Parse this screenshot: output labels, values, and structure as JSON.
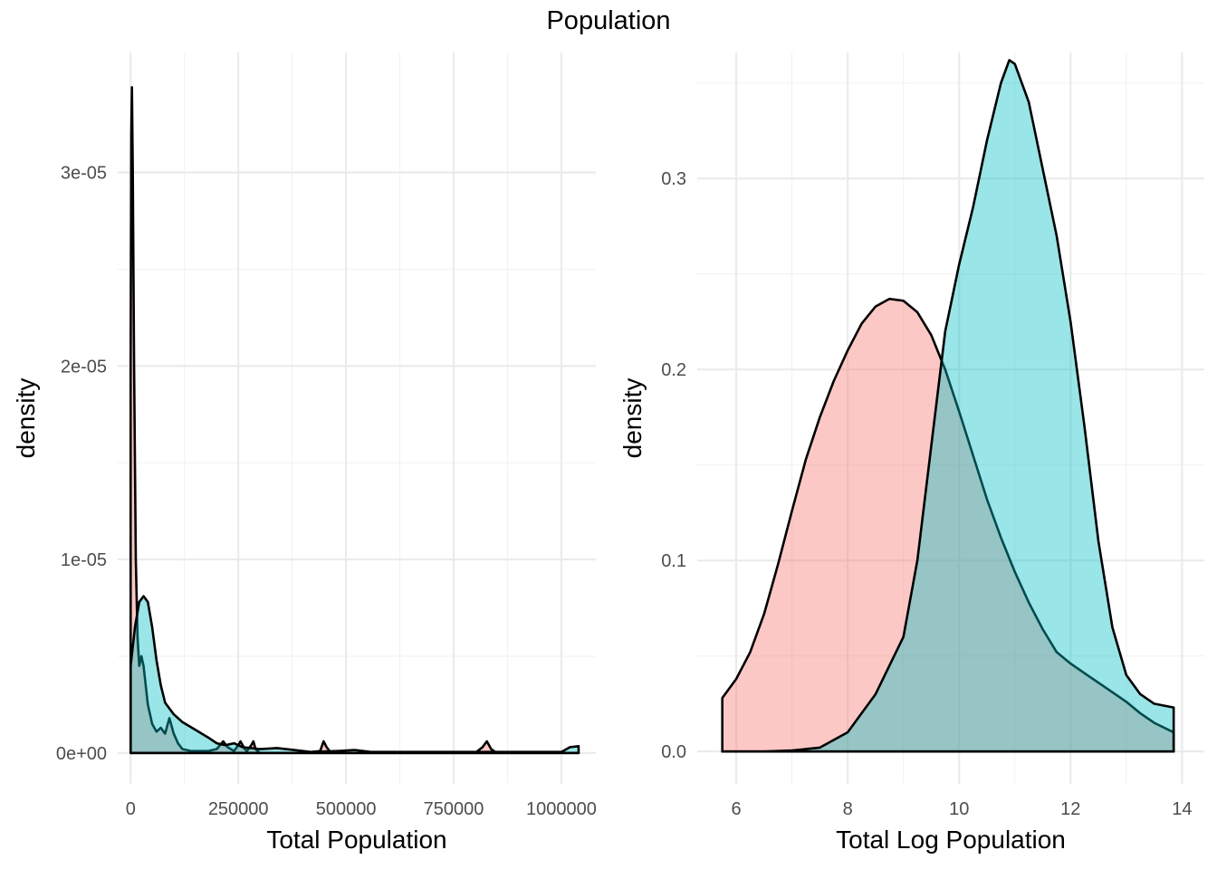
{
  "title": "Population",
  "colors": {
    "group1": "#F8766D",
    "group2": "#00BFC4",
    "outline": "#000000"
  },
  "fill_opacity": 0.4,
  "chart_data": [
    {
      "type": "area",
      "subtype": "density",
      "xlabel": "Total Population",
      "ylabel": "density",
      "xlim": [
        -30000,
        1080000
      ],
      "ylim": [
        -1.6e-06,
        3.62e-05
      ],
      "x_ticks": [
        0,
        250000,
        500000,
        750000,
        1000000
      ],
      "x_tick_labels": [
        "0",
        "250000",
        "500000",
        "750000",
        "1000000"
      ],
      "x_minor_ticks": [
        125000,
        375000,
        625000,
        875000
      ],
      "y_ticks": [
        0,
        1e-05,
        2e-05,
        3e-05
      ],
      "y_tick_labels": [
        "0e+00",
        "1e-05",
        "2e-05",
        "3e-05"
      ],
      "y_minor_ticks": [
        5e-06,
        1.5e-05,
        2.5e-05
      ],
      "grid": true,
      "series": [
        {
          "color": "#F8766D",
          "x": [
            0,
            1500,
            3000,
            5000,
            8000,
            12000,
            16000,
            20000,
            25000,
            30000,
            35000,
            40000,
            45000,
            50000,
            60000,
            70000,
            80000,
            90000,
            100000,
            110000,
            120000,
            140000,
            180000,
            200000,
            215000,
            225000,
            240000,
            250000,
            255000,
            265000,
            270000,
            280000,
            285000,
            290000,
            300000,
            400000,
            440000,
            448000,
            455000,
            465000,
            480000,
            800000,
            817000,
            827000,
            837000,
            850000,
            1040000
          ],
          "y": [
            2e-05,
            3.2e-05,
            3.44e-05,
            3e-05,
            2e-05,
            1e-05,
            6e-06,
            4.5e-06,
            5e-06,
            4.5e-06,
            3.5e-06,
            2.5e-06,
            2e-06,
            1.5e-06,
            1.1e-06,
            1.3e-06,
            1e-06,
            1.8e-06,
            1e-06,
            5e-07,
            2e-07,
            1e-07,
            1e-07,
            2e-07,
            6e-07,
            3e-07,
            1e-07,
            4e-07,
            6e-07,
            2e-07,
            1e-07,
            4e-07,
            6e-07,
            2e-07,
            0,
            0,
            1e-07,
            6e-07,
            3e-07,
            0,
            0,
            0,
            3e-07,
            6e-07,
            2e-07,
            0,
            0
          ]
        },
        {
          "color": "#00BFC4",
          "x": [
            0,
            10000,
            20000,
            30000,
            40000,
            50000,
            60000,
            70000,
            80000,
            100000,
            120000,
            150000,
            180000,
            200000,
            220000,
            240000,
            260000,
            300000,
            340000,
            380000,
            420000,
            480000,
            520000,
            560000,
            1000000,
            1020000,
            1040000
          ],
          "y": [
            4.5e-06,
            6.5e-06,
            7.8e-06,
            8.1e-06,
            7.8e-06,
            6.5e-06,
            4.8e-06,
            3.5e-06,
            2.6e-06,
            2e-06,
            1.6e-06,
            1.2e-06,
            8e-07,
            5e-07,
            4e-07,
            5e-07,
            3e-07,
            2e-07,
            2.5e-07,
            1.5e-07,
            5e-08,
            1e-07,
            1.5e-07,
            5e-08,
            5e-08,
            3e-07,
            3.5e-07
          ]
        }
      ]
    },
    {
      "type": "area",
      "subtype": "density",
      "xlabel": "Total Log Population",
      "ylabel": "density",
      "xlim": [
        5.3,
        14.4
      ],
      "ylim": [
        -0.017,
        0.366
      ],
      "x_ticks": [
        6,
        8,
        10,
        12,
        14
      ],
      "x_tick_labels": [
        "6",
        "8",
        "10",
        "12",
        "14"
      ],
      "x_minor_ticks": [
        7,
        9,
        11,
        13
      ],
      "y_ticks": [
        0.0,
        0.1,
        0.2,
        0.3
      ],
      "y_tick_labels": [
        "0.0",
        "0.1",
        "0.2",
        "0.3"
      ],
      "y_minor_ticks": [
        0.05,
        0.15,
        0.25,
        0.35
      ],
      "grid": true,
      "series": [
        {
          "color": "#F8766D",
          "x": [
            5.75,
            6.0,
            6.25,
            6.5,
            6.75,
            7.0,
            7.25,
            7.5,
            7.75,
            8.0,
            8.25,
            8.5,
            8.75,
            9.0,
            9.25,
            9.5,
            9.75,
            10.0,
            10.25,
            10.5,
            10.75,
            11.0,
            11.25,
            11.5,
            11.75,
            12.0,
            12.25,
            12.5,
            12.75,
            13.0,
            13.25,
            13.5,
            13.85
          ],
          "y": [
            0.028,
            0.038,
            0.052,
            0.072,
            0.098,
            0.126,
            0.153,
            0.175,
            0.194,
            0.21,
            0.224,
            0.233,
            0.237,
            0.236,
            0.23,
            0.218,
            0.2,
            0.178,
            0.155,
            0.132,
            0.112,
            0.094,
            0.078,
            0.064,
            0.052,
            0.046,
            0.041,
            0.036,
            0.031,
            0.026,
            0.02,
            0.015,
            0.01
          ]
        },
        {
          "color": "#00BFC4",
          "x": [
            5.75,
            6.5,
            7.0,
            7.5,
            8.0,
            8.5,
            9.0,
            9.25,
            9.5,
            9.75,
            10.0,
            10.25,
            10.5,
            10.75,
            10.9,
            11.0,
            11.25,
            11.5,
            11.75,
            12.0,
            12.25,
            12.5,
            12.75,
            13.0,
            13.25,
            13.5,
            13.85
          ],
          "y": [
            0.0,
            0.0,
            0.0005,
            0.002,
            0.01,
            0.03,
            0.06,
            0.1,
            0.16,
            0.22,
            0.255,
            0.285,
            0.32,
            0.35,
            0.362,
            0.36,
            0.34,
            0.305,
            0.27,
            0.225,
            0.17,
            0.11,
            0.065,
            0.04,
            0.03,
            0.025,
            0.023
          ]
        }
      ]
    }
  ]
}
